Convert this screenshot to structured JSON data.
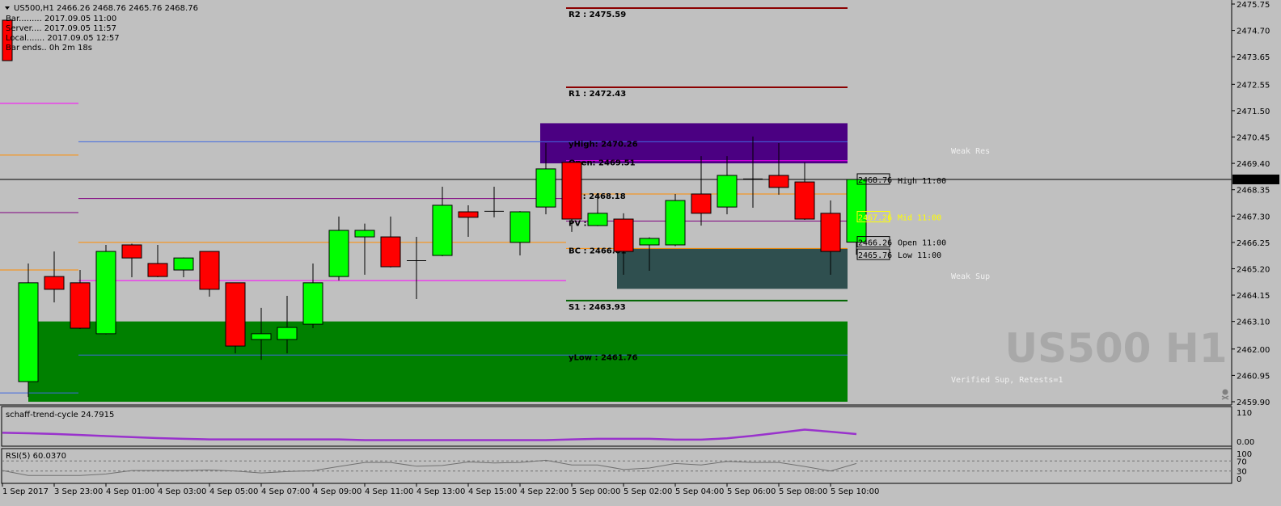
{
  "header": {
    "symbol_line": "US500,H1  2466.26 2468.76 2465.76 2468.76",
    "info_lines": [
      "Bar......... 2017.09.05 11:00",
      "Server.... 2017.09.05 11:57",
      "Local....... 2017.09.05 12:57",
      "Bar ends.. 0h 2m 18s"
    ]
  },
  "watermark": "US500 H1",
  "colors": {
    "background": "#c0c0c0",
    "bull": "#00ff00",
    "bear": "#ff0000",
    "weak_res": "#4b0082",
    "weak_sup": "#2f4f4f",
    "verified_sup": "#008000",
    "stc": "#9932cc",
    "rsi": "#707070"
  },
  "price_axis": {
    "ticks": [
      "2475.75",
      "2474.70",
      "2473.65",
      "2472.55",
      "2471.50",
      "2470.45",
      "2469.40",
      "2468.35",
      "2467.30",
      "2466.25",
      "2465.20",
      "2464.15",
      "2463.10",
      "2462.00",
      "2460.95",
      "2459.90"
    ],
    "current_price": "2468.76",
    "range": [
      2459.9,
      2475.75
    ]
  },
  "candles": [
    [
      2460.7,
      2465.41,
      2460.09,
      2464.64
    ],
    [
      2464.89,
      2465.89,
      2463.86,
      2464.38
    ],
    [
      2464.64,
      2465.15,
      2462.8,
      2462.83
    ],
    [
      2462.61,
      2466.15,
      2462.58,
      2465.89
    ],
    [
      2466.15,
      2466.2,
      2464.86,
      2465.63
    ],
    [
      2465.41,
      2466.15,
      2464.86,
      2464.89
    ],
    [
      2465.15,
      2465.65,
      2464.86,
      2465.63
    ],
    [
      2465.89,
      2465.9,
      2464.09,
      2464.38
    ],
    [
      2464.64,
      2464.65,
      2461.83,
      2462.12
    ],
    [
      2462.38,
      2463.64,
      2461.57,
      2462.61
    ],
    [
      2462.38,
      2464.12,
      2461.83,
      2462.86
    ],
    [
      2462.99,
      2465.41,
      2462.83,
      2464.64
    ],
    [
      2464.89,
      2467.28,
      2464.73,
      2466.73
    ],
    [
      2466.47,
      2467.0,
      2464.96,
      2466.73
    ],
    [
      2466.47,
      2467.28,
      2465.25,
      2465.28
    ],
    [
      2465.5,
      2466.47,
      2463.99,
      2465.52
    ],
    [
      2465.73,
      2468.47,
      2465.7,
      2467.73
    ],
    [
      2467.47,
      2467.73,
      2466.47,
      2467.25
    ],
    [
      2467.47,
      2468.47,
      2467.25,
      2467.49
    ],
    [
      2466.25,
      2467.5,
      2465.73,
      2467.47
    ],
    [
      2467.66,
      2470.21,
      2467.37,
      2469.18
    ],
    [
      2469.44,
      2469.45,
      2466.67,
      2467.18
    ],
    [
      2466.92,
      2468.18,
      2466.9,
      2467.41
    ],
    [
      2467.18,
      2467.41,
      2464.96,
      2465.89
    ],
    [
      2466.15,
      2466.45,
      2465.12,
      2466.41
    ],
    [
      2466.15,
      2468.18,
      2466.1,
      2467.92
    ],
    [
      2468.18,
      2469.69,
      2466.92,
      2467.41
    ],
    [
      2467.66,
      2469.69,
      2467.37,
      2468.92
    ],
    [
      2468.76,
      2470.47,
      2467.63,
      2468.78
    ],
    [
      2468.92,
      2470.21,
      2468.15,
      2468.44
    ],
    [
      2468.66,
      2469.44,
      2467.15,
      2467.18
    ],
    [
      2467.41,
      2467.92,
      2464.96,
      2465.89
    ],
    [
      2466.26,
      2468.76,
      2465.76,
      2468.76
    ]
  ],
  "zones": [
    {
      "label": "Weak Res",
      "top": 2471.0,
      "bottom": 2469.4,
      "color": "#4b0082",
      "from_bar": 20
    },
    {
      "label": "Weak Sup",
      "top": 2466.01,
      "bottom": 2464.4,
      "color": "#2f4f4f",
      "from_bar": 23
    },
    {
      "label": "Verified Sup, Retests=1",
      "top": 2463.1,
      "bottom": 2459.9,
      "color": "#008000",
      "from_bar": 0
    }
  ],
  "levels": [
    {
      "label": "R2 : 2475.59",
      "price": 2475.59,
      "color": "#8b0000",
      "seg": "today"
    },
    {
      "label": "R1 : 2472.43",
      "price": 2472.43,
      "color": "#8b0000",
      "seg": "today"
    },
    {
      "label": "yHigh: 2470.26",
      "price": 2470.26,
      "color": "#4169e1",
      "seg": "two"
    },
    {
      "label": "Open: 2469.51",
      "price": 2469.51,
      "color": "#ff00ff",
      "seg": "today"
    },
    {
      "label": "TC : 2468.18",
      "price": 2468.18,
      "color": "#ff8c00",
      "seg": "today"
    },
    {
      "label": "PV : 246",
      "price": 2467.1,
      "color": "#800080",
      "seg": "today"
    },
    {
      "label": "BC : 2466.01",
      "price": 2466.01,
      "color": "#ff8c00",
      "seg": "today"
    },
    {
      "label": "S1 : 2463.93",
      "price": 2463.93,
      "color": "#006400",
      "seg": "today"
    },
    {
      "label": "yLow : 2461.76",
      "price": 2461.76,
      "color": "#4169e1",
      "seg": "two"
    },
    {
      "label": "",
      "price": 2466.25,
      "color": "#ff8c00",
      "seg": "prev"
    },
    {
      "label": "",
      "price": 2464.73,
      "color": "#ff00ff",
      "seg": "prev"
    },
    {
      "label": "",
      "price": 2468.0,
      "color": "#800080",
      "seg": "prev"
    },
    {
      "label": "",
      "price": 2471.79,
      "color": "#ff00ff",
      "seg": "first"
    },
    {
      "label": "",
      "price": 2469.73,
      "color": "#ff8c00",
      "seg": "first"
    },
    {
      "label": "",
      "price": 2467.44,
      "color": "#800080",
      "seg": "first"
    },
    {
      "label": "",
      "price": 2465.15,
      "color": "#ff8c00",
      "seg": "first"
    },
    {
      "label": "",
      "price": 2460.25,
      "color": "#4169e1",
      "seg": "first"
    }
  ],
  "bar_labels": [
    {
      "price": 2468.76,
      "box": "2468.76",
      "text": "High 11:00",
      "color": "#000000"
    },
    {
      "price": 2467.26,
      "box": "2467.26",
      "text": "Mid 11:00",
      "color": "#ffff00"
    },
    {
      "price": 2466.26,
      "box": "2466.26",
      "text": "Open 11:00",
      "color": "#000000"
    },
    {
      "price": 2465.76,
      "box": "2465.76",
      "text": "Low 11:00",
      "color": "#000000"
    }
  ],
  "stc": {
    "label": "schaff-trend-cycle 24.7915",
    "axis": [
      "110",
      "0.00"
    ],
    "range": [
      -10,
      110
    ],
    "values": [
      28,
      25,
      21,
      17,
      13,
      9,
      6,
      4,
      4,
      4,
      4,
      4,
      4,
      1,
      1,
      1,
      1,
      1,
      1,
      1,
      1,
      4,
      6,
      6,
      6,
      3,
      3,
      8,
      18,
      30,
      42,
      34,
      24.79
    ]
  },
  "rsi": {
    "label": "RSI(5) 60.0370",
    "axis": [
      "100",
      "70",
      "30",
      "0"
    ],
    "levels": [
      70,
      30
    ],
    "values": [
      12,
      12,
      12,
      18,
      32,
      32,
      32,
      34,
      30,
      22,
      28,
      31,
      48,
      64,
      64,
      49,
      52,
      66,
      62,
      64,
      73,
      54,
      54,
      36,
      42,
      60,
      54,
      68,
      64,
      64,
      48,
      30,
      60.04
    ]
  },
  "time_axis": [
    "1 Sep 2017",
    "3 Sep 23:00",
    "4 Sep 01:00",
    "4 Sep 03:00",
    "4 Sep 05:00",
    "4 Sep 07:00",
    "4 Sep 09:00",
    "4 Sep 11:00",
    "4 Sep 13:00",
    "4 Sep 15:00",
    "4 Sep 22:00",
    "5 Sep 00:00",
    "5 Sep 02:00",
    "5 Sep 04:00",
    "5 Sep 06:00",
    "5 Sep 08:00",
    "5 Sep 10:00"
  ]
}
